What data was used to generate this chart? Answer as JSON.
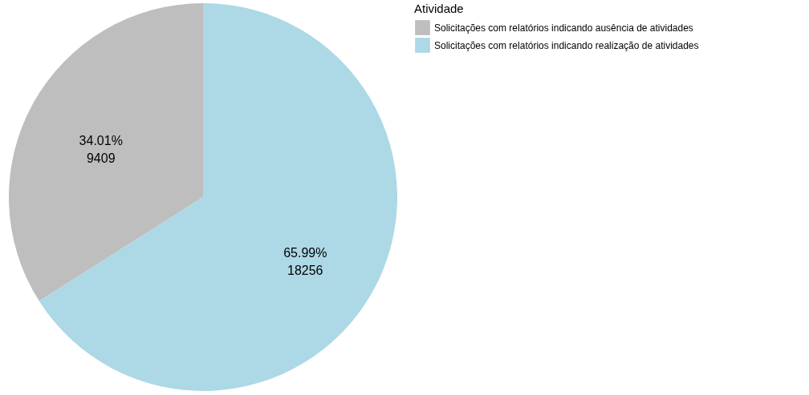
{
  "chart_data": {
    "type": "pie",
    "legend_title": "Atividade",
    "categories": [
      "Solicitações com relatórios indicando ausência de atividades",
      "Solicitações com relatórios indicando realização de atividades"
    ],
    "values": [
      9409,
      18256
    ],
    "colors": [
      "#bebebe",
      "#add8e6"
    ],
    "value_labels": [
      "34.01%\n9409",
      "65.99%\n18256"
    ],
    "legend": "right"
  }
}
